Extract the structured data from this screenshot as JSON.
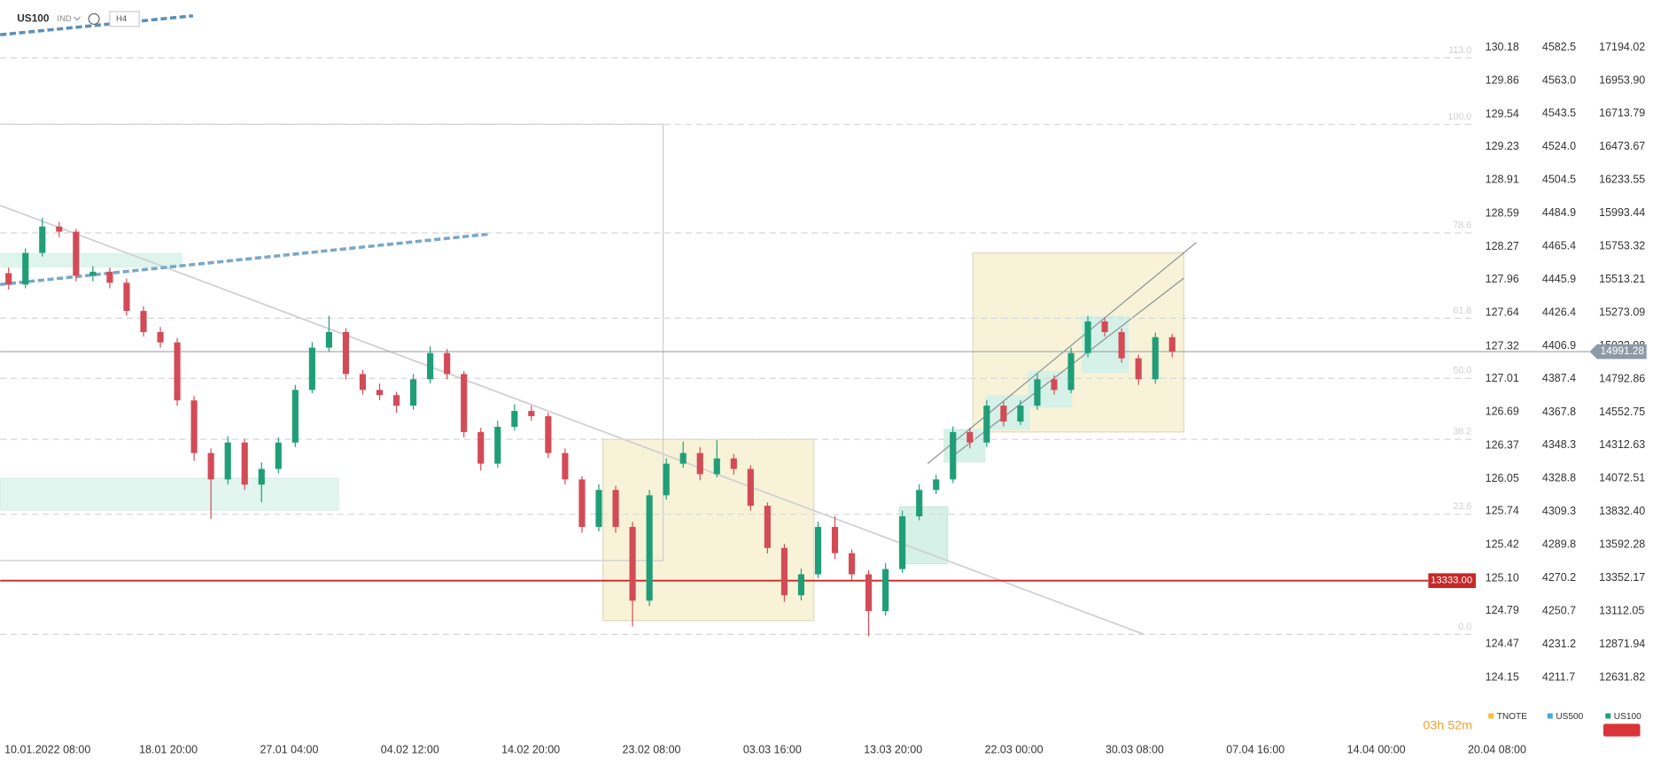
{
  "chart_data": {
    "type": "candlestick",
    "symbol": "US100",
    "instrument_type": "IND",
    "timeframe": "H4",
    "timer": "03h 52m",
    "up_color": "#1f9e77",
    "down_color": "#d24b57",
    "ylim": [
      12631.82,
      17194.02
    ],
    "yticks": [
      {
        "value": 17194.02,
        "label": "17194.02"
      },
      {
        "value": 16953.9,
        "label": "16953.90"
      },
      16713.79,
      16473.67,
      16233.55,
      15993.44,
      15753.32,
      15513.21,
      15273.09,
      15032.98,
      14792.86,
      14552.75,
      14312.63,
      14072.51,
      {
        "value": 13832.4,
        "label": "13832.40"
      },
      13592.28,
      13352.17,
      13112.05,
      12871.94,
      12631.82
    ],
    "other_axes": [
      {
        "name": "TNOTE",
        "color": "#f2c230",
        "lim": [
          124.15,
          130.18
        ],
        "ticks": [
          130.18,
          129.86,
          129.54,
          129.23,
          128.91,
          128.59,
          128.27,
          127.96,
          127.64,
          127.32,
          127.01,
          126.69,
          126.37,
          126.05,
          125.74,
          125.42,
          {
            "value": 125.1,
            "label": "125.10"
          },
          124.79,
          124.47,
          124.15
        ]
      },
      {
        "name": "US500",
        "color": "#4aa8d8",
        "lim": [
          4211.7,
          4582.5
        ],
        "ticks": [
          4582.5,
          {
            "value": 4563,
            "label": "4563.0"
          },
          4543.5,
          {
            "value": 4524,
            "label": "4524.0"
          },
          4504.5,
          4484.9,
          4465.4,
          4445.9,
          4426.4,
          4406.9,
          4387.4,
          4367.8,
          4348.3,
          4328.8,
          4309.3,
          4289.8,
          4270.2,
          4250.7,
          4231.2,
          4211.7
        ]
      }
    ],
    "legend_name": "US100",
    "legend_color": "#1f9e77",
    "xtick_labels": [
      "10.01.2022  08:00",
      "18.01  20:00",
      "27.01  04:00",
      "04.02  12:00",
      "14.02  20:00",
      "23.02  08:00",
      "03.03  16:00",
      "13.03  20:00",
      "22.03  00:00",
      "30.03  08:00",
      "07.04  16:00",
      "14.04  00:00",
      "20.04  08:00"
    ],
    "current_price": {
      "value": 14991.28,
      "label": "14991.28"
    },
    "alert_level": {
      "value": 13333,
      "label": "13333.00"
    },
    "fib_levels": [
      {
        "label": "113.0",
        "price": 17118
      },
      {
        "label": "100.0",
        "price": 16637
      },
      {
        "label": "78.6",
        "price": 15851
      },
      {
        "label": "61.8",
        "price": 15233
      },
      {
        "label": "50.0",
        "price": 14798
      },
      {
        "label": "38.2",
        "price": 14356
      },
      {
        "label": "23.6",
        "price": 13814
      },
      {
        "label": "0.0",
        "price": 12944
      }
    ],
    "ohlc": [
      [
        15560,
        15600,
        15440,
        15477
      ],
      [
        15477,
        15740,
        15450,
        15706
      ],
      [
        15706,
        15960,
        15680,
        15897
      ],
      [
        15897,
        15930,
        15820,
        15860
      ],
      [
        15860,
        15880,
        15500,
        15540
      ],
      [
        15540,
        15610,
        15500,
        15570
      ],
      [
        15570,
        15600,
        15450,
        15490
      ],
      [
        15490,
        15520,
        15250,
        15286
      ],
      [
        15286,
        15320,
        15100,
        15133
      ],
      [
        15133,
        15170,
        15020,
        15058
      ],
      [
        15058,
        15090,
        14600,
        14638
      ],
      [
        14638,
        14670,
        14200,
        14257
      ],
      [
        14257,
        14290,
        13780,
        14066
      ],
      [
        14066,
        14380,
        14030,
        14333
      ],
      [
        14333,
        14360,
        13990,
        14028
      ],
      [
        14028,
        14190,
        13900,
        14142
      ],
      [
        14142,
        14370,
        14110,
        14333
      ],
      [
        14333,
        14750,
        14300,
        14714
      ],
      [
        14714,
        15060,
        14690,
        15020
      ],
      [
        15020,
        15250,
        14990,
        15133
      ],
      [
        15133,
        15160,
        14790,
        14829
      ],
      [
        14829,
        14860,
        14680,
        14714
      ],
      [
        14714,
        14760,
        14640,
        14676
      ],
      [
        14676,
        14700,
        14550,
        14600
      ],
      [
        14600,
        14830,
        14570,
        14791
      ],
      [
        14791,
        15030,
        14760,
        14981
      ],
      [
        14981,
        15010,
        14790,
        14829
      ],
      [
        14829,
        14850,
        14370,
        14409
      ],
      [
        14409,
        14440,
        14130,
        14180
      ],
      [
        14180,
        14490,
        14150,
        14447
      ],
      [
        14447,
        14610,
        14420,
        14562
      ],
      [
        14562,
        14600,
        14490,
        14524
      ],
      [
        14524,
        14550,
        14220,
        14257
      ],
      [
        14257,
        14290,
        14030,
        14066
      ],
      [
        14066,
        14090,
        13680,
        13722
      ],
      [
        13722,
        14030,
        13690,
        13990
      ],
      [
        13990,
        14020,
        13680,
        13722
      ],
      [
        13722,
        13760,
        13000,
        13188
      ],
      [
        13188,
        13990,
        13150,
        13951
      ],
      [
        13951,
        14220,
        13920,
        14180
      ],
      [
        14180,
        14340,
        14150,
        14257
      ],
      [
        14257,
        14300,
        14060,
        14104
      ],
      [
        14104,
        14350,
        14080,
        14218
      ],
      [
        14218,
        14250,
        14100,
        14142
      ],
      [
        14142,
        14170,
        13840,
        13875
      ],
      [
        13875,
        13900,
        13530,
        13570
      ],
      [
        13570,
        13600,
        13180,
        13227
      ],
      [
        13227,
        13420,
        13190,
        13379
      ],
      [
        13379,
        13760,
        13350,
        13722
      ],
      [
        13722,
        13800,
        13490,
        13532
      ],
      [
        13532,
        13560,
        13340,
        13379
      ],
      [
        13379,
        13410,
        12930,
        13112
      ],
      [
        13112,
        13460,
        13080,
        13417
      ],
      [
        13417,
        13840,
        13390,
        13799
      ],
      [
        13799,
        14030,
        13770,
        13990
      ],
      [
        13990,
        14100,
        13960,
        14066
      ],
      [
        14066,
        14450,
        14040,
        14409
      ],
      [
        14409,
        14440,
        14290,
        14333
      ],
      [
        14333,
        14640,
        14300,
        14600
      ],
      [
        14600,
        14630,
        14450,
        14485
      ],
      [
        14485,
        14640,
        14460,
        14600
      ],
      [
        14600,
        14830,
        14570,
        14791
      ],
      [
        14791,
        14820,
        14680,
        14714
      ],
      [
        14714,
        15020,
        14690,
        14981
      ],
      [
        14981,
        15250,
        14950,
        15210
      ],
      [
        15210,
        15240,
        15100,
        15133
      ],
      [
        15133,
        15160,
        14910,
        14943
      ],
      [
        14943,
        14970,
        14750,
        14791
      ],
      [
        14791,
        15130,
        14760,
        15096
      ],
      [
        15096,
        15120,
        14950,
        14991.28
      ]
    ]
  }
}
